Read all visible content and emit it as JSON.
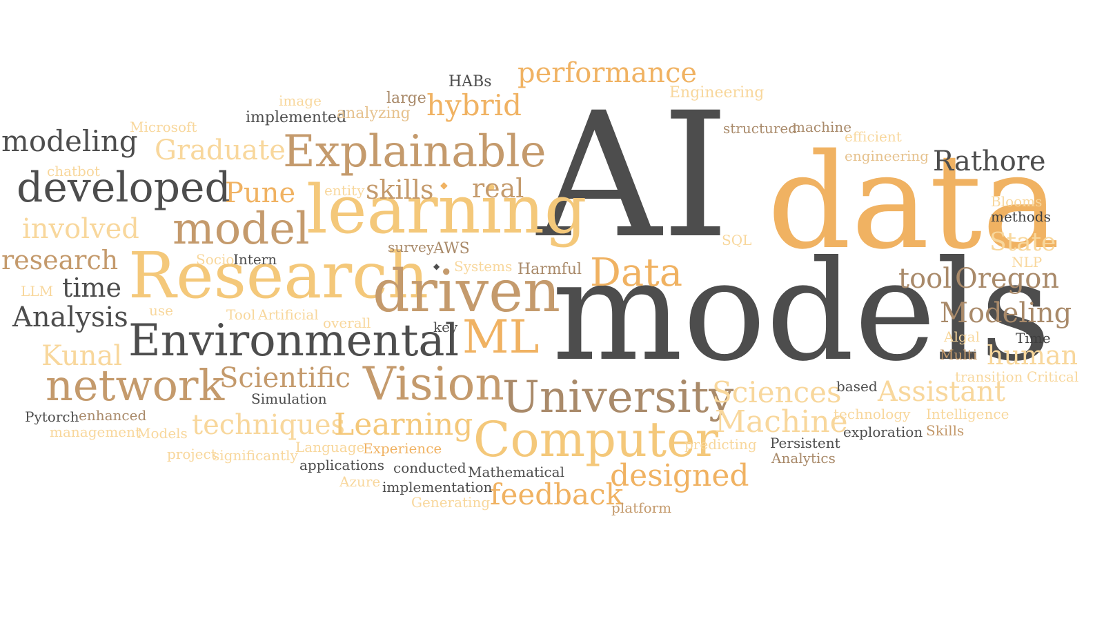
{
  "palette": {
    "charcoal": "#4d4d4d",
    "dark": "#3f3f3f",
    "brown": "#a98a6a",
    "tan": "#c49a6c",
    "orange": "#f0b262",
    "gold": "#f4c87a",
    "lightgold": "#f8d79c",
    "sand": "#e6c28e"
  },
  "words": [
    {
      "text": "AI",
      "color": "charcoal"
    },
    {
      "text": "data",
      "color": "orange"
    },
    {
      "text": "models",
      "color": "charcoal"
    },
    {
      "text": "learning",
      "color": "gold"
    },
    {
      "text": "Research",
      "color": "gold"
    },
    {
      "text": "driven",
      "color": "tan"
    },
    {
      "text": "Environmental",
      "color": "charcoal"
    },
    {
      "text": "University",
      "color": "brown"
    },
    {
      "text": "Computer",
      "color": "gold"
    },
    {
      "text": "Explainable",
      "color": "tan"
    },
    {
      "text": "developed",
      "color": "charcoal"
    },
    {
      "text": "model",
      "color": "tan"
    },
    {
      "text": "Vision",
      "color": "tan"
    },
    {
      "text": "ML",
      "color": "orange"
    },
    {
      "text": "network",
      "color": "tan"
    },
    {
      "text": "Data",
      "color": "orange"
    },
    {
      "text": "performance",
      "color": "orange"
    },
    {
      "text": "hybrid",
      "color": "orange"
    },
    {
      "text": "modeling",
      "color": "charcoal"
    },
    {
      "text": "Graduate",
      "color": "lightgold"
    },
    {
      "text": "Pune",
      "color": "orange"
    },
    {
      "text": "skills",
      "color": "tan"
    },
    {
      "text": "real",
      "color": "tan"
    },
    {
      "text": "involved",
      "color": "lightgold"
    },
    {
      "text": "research",
      "color": "tan"
    },
    {
      "text": "time",
      "color": "charcoal"
    },
    {
      "text": "Analysis",
      "color": "charcoal"
    },
    {
      "text": "Kunal",
      "color": "lightgold"
    },
    {
      "text": "Scientific",
      "color": "tan"
    },
    {
      "text": "techniques",
      "color": "lightgold"
    },
    {
      "text": "Learning",
      "color": "gold"
    },
    {
      "text": "Machine",
      "color": "lightgold"
    },
    {
      "text": "Sciences",
      "color": "lightgold"
    },
    {
      "text": "Assistant",
      "color": "lightgold"
    },
    {
      "text": "designed",
      "color": "orange"
    },
    {
      "text": "feedback",
      "color": "orange"
    },
    {
      "text": "Rathore",
      "color": "charcoal"
    },
    {
      "text": "tool",
      "color": "brown"
    },
    {
      "text": "Oregon",
      "color": "brown"
    },
    {
      "text": "Modeling",
      "color": "brown"
    },
    {
      "text": "State",
      "color": "lightgold"
    },
    {
      "text": "human",
      "color": "lightgold"
    },
    {
      "text": "HABs",
      "color": "charcoal"
    },
    {
      "text": "large",
      "color": "brown"
    },
    {
      "text": "image",
      "color": "lightgold"
    },
    {
      "text": "implemented",
      "color": "charcoal"
    },
    {
      "text": "analyzing",
      "color": "sand"
    },
    {
      "text": "Engineering",
      "color": "lightgold"
    },
    {
      "text": "Microsoft",
      "color": "lightgold"
    },
    {
      "text": "structured",
      "color": "brown"
    },
    {
      "text": "machine",
      "color": "brown"
    },
    {
      "text": "efficient",
      "color": "lightgold"
    },
    {
      "text": "engineering",
      "color": "sand"
    },
    {
      "text": "chatbot",
      "color": "lightgold"
    },
    {
      "text": "entity",
      "color": "lightgold"
    },
    {
      "text": "Blooms",
      "color": "lightgold"
    },
    {
      "text": "methods",
      "color": "dark"
    },
    {
      "text": "SQL",
      "color": "lightgold"
    },
    {
      "text": "survey",
      "color": "brown"
    },
    {
      "text": "AWS",
      "color": "brown"
    },
    {
      "text": "Socio",
      "color": "lightgold"
    },
    {
      "text": "Intern",
      "color": "charcoal"
    },
    {
      "text": "Systems",
      "color": "lightgold"
    },
    {
      "text": "Harmful",
      "color": "brown"
    },
    {
      "text": "NLP",
      "color": "lightgold"
    },
    {
      "text": "LLM",
      "color": "lightgold"
    },
    {
      "text": "use",
      "color": "lightgold"
    },
    {
      "text": "Tool",
      "color": "lightgold"
    },
    {
      "text": "Artificial",
      "color": "lightgold"
    },
    {
      "text": "overall",
      "color": "lightgold"
    },
    {
      "text": "key",
      "color": "charcoal"
    },
    {
      "text": "Algal",
      "color": "lightgold"
    },
    {
      "text": "Time",
      "color": "dark"
    },
    {
      "text": "Multi",
      "color": "tan"
    },
    {
      "text": "transition",
      "color": "lightgold"
    },
    {
      "text": "Critical",
      "color": "lightgold"
    },
    {
      "text": "based",
      "color": "charcoal"
    },
    {
      "text": "Simulation",
      "color": "charcoal"
    },
    {
      "text": "Pytorch",
      "color": "charcoal"
    },
    {
      "text": "enhanced",
      "color": "brown"
    },
    {
      "text": "management",
      "color": "lightgold"
    },
    {
      "text": "Models",
      "color": "lightgold"
    },
    {
      "text": "technology",
      "color": "lightgold"
    },
    {
      "text": "Intelligence",
      "color": "lightgold"
    },
    {
      "text": "exploration",
      "color": "charcoal"
    },
    {
      "text": "Skills",
      "color": "tan"
    },
    {
      "text": "project",
      "color": "lightgold"
    },
    {
      "text": "significantly",
      "color": "lightgold"
    },
    {
      "text": "Language",
      "color": "lightgold"
    },
    {
      "text": "Experience",
      "color": "orange"
    },
    {
      "text": "predicting",
      "color": "lightgold"
    },
    {
      "text": "Persistent",
      "color": "charcoal"
    },
    {
      "text": "Analytics",
      "color": "brown"
    },
    {
      "text": "applications",
      "color": "charcoal"
    },
    {
      "text": "conducted",
      "color": "charcoal"
    },
    {
      "text": "Mathematical",
      "color": "charcoal"
    },
    {
      "text": "Azure",
      "color": "lightgold"
    },
    {
      "text": "implementation",
      "color": "charcoal"
    },
    {
      "text": "Generating",
      "color": "lightgold"
    },
    {
      "text": "platform",
      "color": "tan"
    }
  ]
}
